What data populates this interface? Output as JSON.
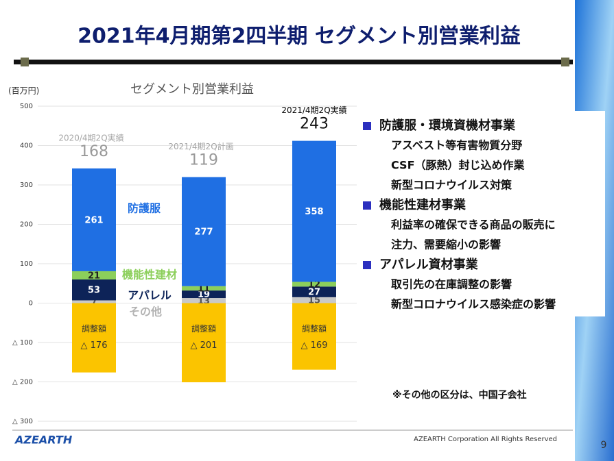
{
  "title": "2021年4月期第2四半期 セグメント別営業利益",
  "chart_data": {
    "type": "stacked_bar",
    "title": "セグメント別営業利益",
    "y_label": "(百万円)",
    "categories": [
      "2020/4期2Q実績",
      "2021/4期2Q計画",
      "2021/4期2Q実績"
    ],
    "category_colors": [
      "#a6a6a6",
      "#a6a6a6",
      "#000000"
    ],
    "totals": [
      168,
      119,
      243
    ],
    "series": [
      {
        "name": "その他",
        "color": "#c9c9c9",
        "values": [
          7,
          13,
          15
        ]
      },
      {
        "name": "アパレル",
        "color": "#0d2358",
        "values": [
          53,
          19,
          27
        ]
      },
      {
        "name": "機能性建材",
        "color": "#8ccf5b",
        "values": [
          21,
          11,
          12
        ]
      },
      {
        "name": "防護服",
        "color": "#1f6fe3",
        "values": [
          261,
          277,
          358
        ]
      },
      {
        "name": "調整額",
        "color": "#fbc400",
        "values": [
          -176,
          -201,
          -169
        ],
        "value_labels": [
          "△ 176",
          "△ 201",
          "△ 169"
        ]
      }
    ],
    "ylim": [
      -300,
      500
    ],
    "yticks": [
      500,
      400,
      300,
      200,
      100,
      0,
      {
        "value": -100,
        "label": "△ 100"
      },
      {
        "value": -200,
        "label": "△ 200"
      },
      {
        "value": -300,
        "label": "△ 300"
      }
    ],
    "grid": true
  },
  "sections": [
    {
      "heading": "防護服・環境資機材事業",
      "items": [
        "アスベスト等有害物質分野",
        "CSF（豚熱）封じ込め作業",
        "新型コロナウイルス対策"
      ]
    },
    {
      "heading": "機能性建材事業",
      "items": [
        "利益率の確保できる商品の販売に",
        "注力、需要縮小の影響"
      ]
    },
    {
      "heading": "アパレル資材事業",
      "items": [
        "取引先の在庫調整の影響",
        "新型コロナウイルス感染症の影響"
      ]
    }
  ],
  "note": "※その他の区分は、中国子会社",
  "footer": {
    "logo": "AZEARTH",
    "copyright": "AZEARTH Corporation All Rights Reserved",
    "page": "9"
  }
}
